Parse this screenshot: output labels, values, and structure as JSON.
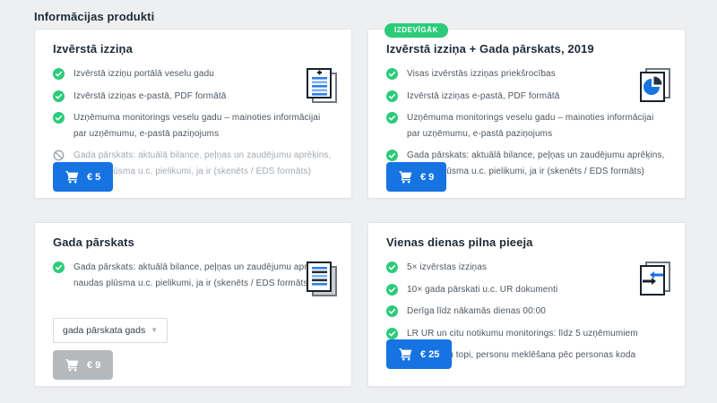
{
  "page": {
    "title": "Informācijas produkti"
  },
  "colors": {
    "accent_blue": "#1673e2",
    "success_green": "#2bcb7a",
    "badge_green": "#2bcb7a",
    "muted_gray": "#a2aab2",
    "title_dark": "#1e2b38",
    "body_text": "#4d5761",
    "disabled_button_gray": "#b6b9bc",
    "page_background": "#eeeff0"
  },
  "cards": [
    {
      "title": "Izvērstā izziņa",
      "badge": null,
      "icon": "document-plus-icon",
      "features": [
        {
          "state": "included",
          "text": "Izvērstā izziņu portālā veselu gadu"
        },
        {
          "state": "included",
          "text": "Izvērstā izziņas e-pastā, PDF formātā"
        },
        {
          "state": "included",
          "text": "Uzņēmuma monitorings veselu gadu – mainoties informācijai par uzņēmumu, e-pastā paziņojums"
        },
        {
          "state": "excluded",
          "text": "Gada pārskats: aktuālā bilance, peļņas un zaudējumu aprēķins, naudas plūsma u.c. pielikumi, ja ir (skenēts / EDS formāts)"
        }
      ],
      "button": {
        "label": "€ 5",
        "disabled": false
      }
    },
    {
      "title": "Izvērstā izziņa + Gada pārskats, 2019",
      "badge": "IZDEVĪGĀK",
      "icon": "pie-chart-document-icon",
      "features": [
        {
          "state": "included",
          "text": "Visas izvērstās izziņas priekšrocības"
        },
        {
          "state": "included",
          "text": "Izvērstā izziņas e-pastā, PDF formātā"
        },
        {
          "state": "included",
          "text": "Uzņēmuma monitorings veselu gadu – mainoties informācijai par uzņēmumu, e-pastā paziņojums"
        },
        {
          "state": "included",
          "text": "Gada pārskats: aktuālā bilance, peļņas un zaudējumu aprēķins, naudas plūsma u.c. pielikumi, ja ir (skenēts / EDS formāts)"
        }
      ],
      "button": {
        "label": "€ 9",
        "disabled": false
      }
    },
    {
      "title": "Gada pārskats",
      "badge": null,
      "icon": "document-lines-icon",
      "features": [
        {
          "state": "included",
          "text": "Gada pārskats: aktuālā bilance, peļņas un zaudējumu aprēķins, naudas plūsma u.c. pielikumi, ja ir (skenēts / EDS formāts)"
        }
      ],
      "select": {
        "value": "gada pārskata gads"
      },
      "button": {
        "label": "€ 9",
        "disabled": true
      }
    },
    {
      "title": "Vienas dienas pilna pieeja",
      "badge": null,
      "icon": "document-transfer-icon",
      "features": [
        {
          "state": "included",
          "text": "5× izvērstas izziņas"
        },
        {
          "state": "included",
          "text": "10× gada pārskati u.c. UR dokumenti"
        },
        {
          "state": "included",
          "text": "Derīga līdz nākamās dienas 00:00"
        },
        {
          "state": "included",
          "text": "LR UR un citu notikumu monitorings: līdz 5 uzņēmumiem"
        },
        {
          "state": "included",
          "text": "Uzņēmumu topi, personu meklēšana pēc personas koda"
        }
      ],
      "button": {
        "label": "€ 25",
        "disabled": false
      }
    }
  ]
}
